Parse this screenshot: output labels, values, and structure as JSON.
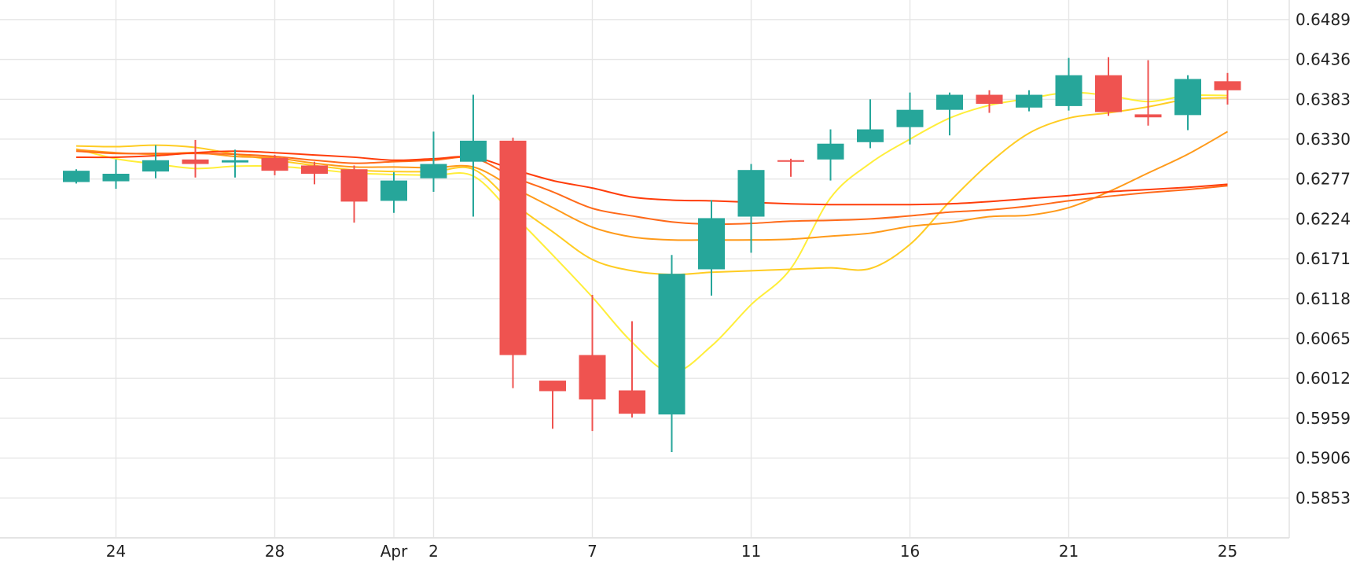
{
  "chart_data": {
    "type": "candlestick",
    "title": "",
    "xlabel": "",
    "ylabel": "",
    "ylim": [
      0.58,
      0.6515
    ],
    "y_ticks": [
      "0.6489",
      "0.6436",
      "0.6383",
      "0.6330",
      "0.6277",
      "0.6224",
      "0.6171",
      "0.6118",
      "0.6065",
      "0.6012",
      "0.5959",
      "0.5906",
      "0.5853"
    ],
    "x_ticks": [
      {
        "label": "24",
        "index": 1
      },
      {
        "label": "28",
        "index": 5
      },
      {
        "label": "Apr",
        "index": 8
      },
      {
        "label": "2",
        "index": 9
      },
      {
        "label": "7",
        "index": 13
      },
      {
        "label": "11",
        "index": 17
      },
      {
        "label": "16",
        "index": 21
      },
      {
        "label": "21",
        "index": 25
      },
      {
        "label": "25",
        "index": 29
      }
    ],
    "colors": {
      "up": "#26a69a",
      "down": "#ef5350"
    },
    "candles": [
      {
        "o": 0.6273,
        "h": 0.629,
        "l": 0.6271,
        "c": 0.6288
      },
      {
        "o": 0.6274,
        "h": 0.6303,
        "l": 0.6264,
        "c": 0.6284
      },
      {
        "o": 0.6287,
        "h": 0.6322,
        "l": 0.6278,
        "c": 0.6302
      },
      {
        "o": 0.6303,
        "h": 0.6329,
        "l": 0.6279,
        "c": 0.6297
      },
      {
        "o": 0.6299,
        "h": 0.6316,
        "l": 0.6279,
        "c": 0.6302
      },
      {
        "o": 0.6305,
        "h": 0.6309,
        "l": 0.6282,
        "c": 0.6288
      },
      {
        "o": 0.6295,
        "h": 0.63,
        "l": 0.627,
        "c": 0.6284
      },
      {
        "o": 0.629,
        "h": 0.6295,
        "l": 0.6219,
        "c": 0.6247
      },
      {
        "o": 0.6248,
        "h": 0.6286,
        "l": 0.6232,
        "c": 0.6275
      },
      {
        "o": 0.6278,
        "h": 0.634,
        "l": 0.626,
        "c": 0.6297
      },
      {
        "o": 0.63,
        "h": 0.6389,
        "l": 0.6227,
        "c": 0.6328
      },
      {
        "o": 0.6328,
        "h": 0.6332,
        "l": 0.5999,
        "c": 0.6043
      },
      {
        "o": 0.6009,
        "h": 0.6008,
        "l": 0.5945,
        "c": 0.5995
      },
      {
        "o": 0.6043,
        "h": 0.6123,
        "l": 0.5942,
        "c": 0.5984
      },
      {
        "o": 0.5996,
        "h": 0.6088,
        "l": 0.596,
        "c": 0.5965
      },
      {
        "o": 0.5964,
        "h": 0.6176,
        "l": 0.5914,
        "c": 0.6151
      },
      {
        "o": 0.6157,
        "h": 0.6249,
        "l": 0.6122,
        "c": 0.6225
      },
      {
        "o": 0.6227,
        "h": 0.6297,
        "l": 0.6179,
        "c": 0.6289
      },
      {
        "o": 0.6302,
        "h": 0.6304,
        "l": 0.628,
        "c": 0.63
      },
      {
        "o": 0.6303,
        "h": 0.6343,
        "l": 0.6275,
        "c": 0.6324
      },
      {
        "o": 0.6326,
        "h": 0.6383,
        "l": 0.6318,
        "c": 0.6343
      },
      {
        "o": 0.6346,
        "h": 0.6392,
        "l": 0.6323,
        "c": 0.6369
      },
      {
        "o": 0.6369,
        "h": 0.6392,
        "l": 0.6335,
        "c": 0.6389
      },
      {
        "o": 0.6389,
        "h": 0.6395,
        "l": 0.6365,
        "c": 0.6377
      },
      {
        "o": 0.6372,
        "h": 0.6395,
        "l": 0.6367,
        "c": 0.6389
      },
      {
        "o": 0.6374,
        "h": 0.6438,
        "l": 0.6368,
        "c": 0.6415
      },
      {
        "o": 0.6415,
        "h": 0.6439,
        "l": 0.6361,
        "c": 0.6366
      },
      {
        "o": 0.6363,
        "h": 0.6435,
        "l": 0.6348,
        "c": 0.6359
      },
      {
        "o": 0.6362,
        "h": 0.6415,
        "l": 0.6342,
        "c": 0.641
      },
      {
        "o": 0.6407,
        "h": 0.6418,
        "l": 0.6376,
        "c": 0.6395
      }
    ],
    "moving_averages": [
      {
        "color": "#ffee3a",
        "values": [
          0.6317,
          0.6304,
          0.6297,
          0.6291,
          0.6294,
          0.6294,
          0.629,
          0.6285,
          0.6283,
          0.6282,
          0.6281,
          0.623,
          0.6176,
          0.612,
          0.606,
          0.602,
          0.6055,
          0.611,
          0.6158,
          0.6252,
          0.6298,
          0.633,
          0.6358,
          0.6375,
          0.6384,
          0.6392,
          0.6388,
          0.638,
          0.6388,
          0.6388
        ]
      },
      {
        "color": "#ffcc22",
        "values": [
          0.6321,
          0.632,
          0.6322,
          0.6319,
          0.631,
          0.6302,
          0.6295,
          0.6289,
          0.6287,
          0.6287,
          0.629,
          0.6245,
          0.6207,
          0.617,
          0.6155,
          0.615,
          0.6153,
          0.6155,
          0.6157,
          0.6159,
          0.6158,
          0.619,
          0.6247,
          0.6298,
          0.6338,
          0.6358,
          0.6365,
          0.6373,
          0.6383,
          0.6385
        ]
      },
      {
        "color": "#ff9a1a",
        "values": [
          0.6316,
          0.6312,
          0.631,
          0.6312,
          0.6307,
          0.6305,
          0.6298,
          0.6293,
          0.6293,
          0.6292,
          0.6293,
          0.6266,
          0.6239,
          0.6213,
          0.62,
          0.6196,
          0.6196,
          0.6196,
          0.6197,
          0.6201,
          0.6205,
          0.6214,
          0.6219,
          0.6227,
          0.6229,
          0.6239,
          0.626,
          0.6285,
          0.631,
          0.634
        ]
      },
      {
        "color": "#ff6a1a",
        "values": [
          0.6314,
          0.6311,
          0.6311,
          0.6311,
          0.631,
          0.6307,
          0.6302,
          0.6298,
          0.63,
          0.6302,
          0.6305,
          0.628,
          0.626,
          0.6238,
          0.6228,
          0.622,
          0.6217,
          0.6218,
          0.6221,
          0.6222,
          0.6224,
          0.6228,
          0.6233,
          0.6236,
          0.6241,
          0.6248,
          0.6254,
          0.6259,
          0.6263,
          0.6268
        ]
      },
      {
        "color": "#ff3d0a",
        "values": [
          0.6306,
          0.6306,
          0.6308,
          0.6312,
          0.6314,
          0.6312,
          0.6309,
          0.6306,
          0.6302,
          0.6304,
          0.6306,
          0.629,
          0.6275,
          0.6265,
          0.6253,
          0.6249,
          0.6248,
          0.6246,
          0.6244,
          0.6243,
          0.6243,
          0.6243,
          0.6244,
          0.6247,
          0.6251,
          0.6255,
          0.626,
          0.6263,
          0.6266,
          0.627
        ]
      }
    ]
  }
}
